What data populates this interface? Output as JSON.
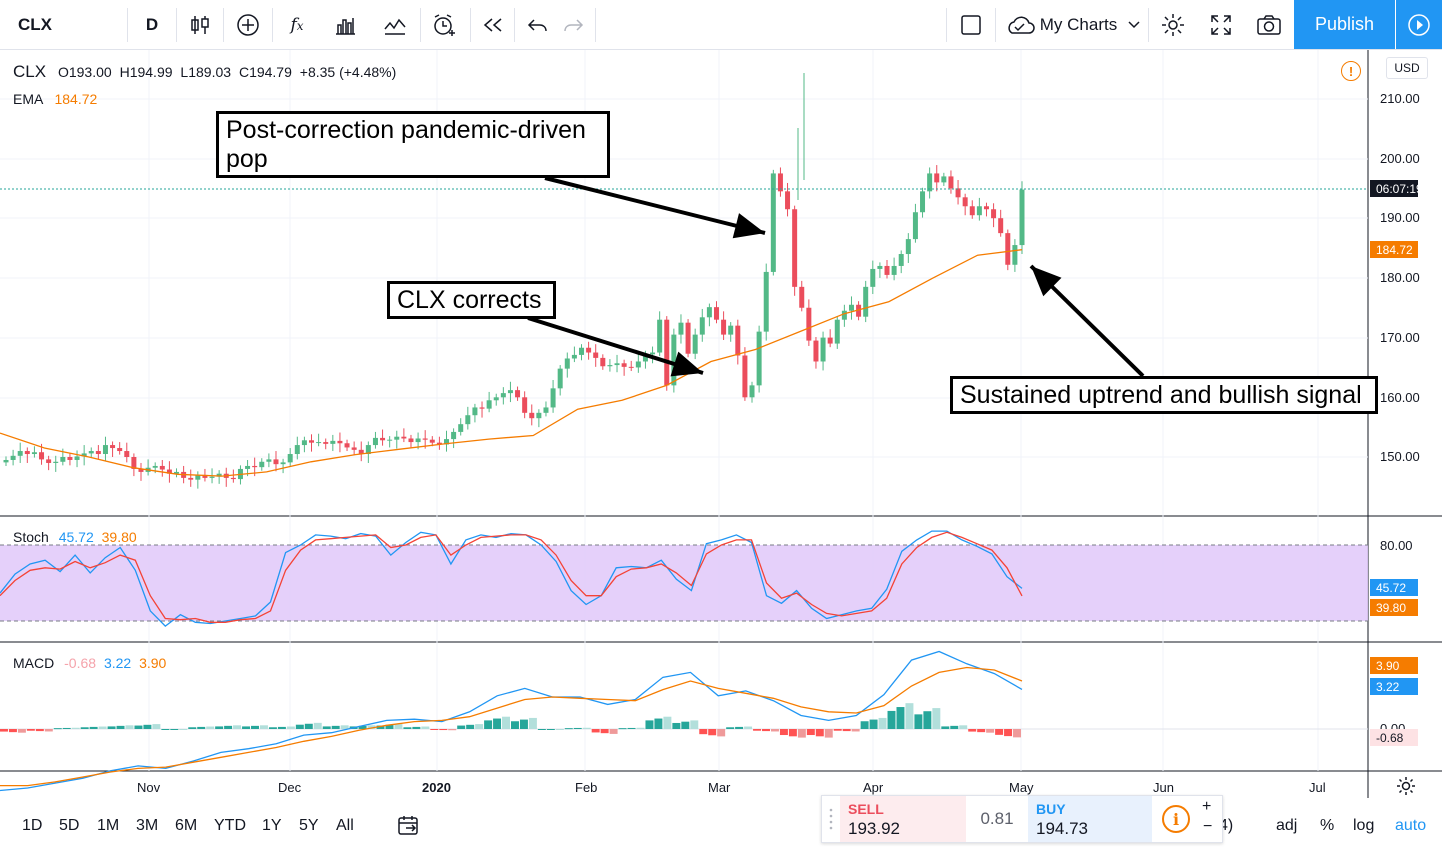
{
  "toolbar": {
    "symbol": "CLX",
    "interval": "D",
    "my_charts": "My Charts",
    "publish": "Publish"
  },
  "legend": {
    "symbol": "CLX",
    "open_label": "O",
    "open": "193.00",
    "high_label": "H",
    "high": "194.99",
    "low_label": "L",
    "low": "189.03",
    "close_label": "C",
    "close": "194.79",
    "change": "+8.35 (+4.48%)",
    "ema_label": "EMA",
    "ema_value": "184.72",
    "currency": "USD"
  },
  "annotations": {
    "pop": "Post-correction pandemic-driven pop",
    "corrects": "CLX corrects",
    "uptrend": "Sustained uptrend and bullish signal"
  },
  "price_axis": {
    "ticks": [
      "210.00",
      "200.00",
      "190.00",
      "180.00",
      "170.00",
      "160.00",
      "150.00"
    ],
    "countdown": "06:07:19",
    "ema_tag": "184.72"
  },
  "stoch": {
    "label": "Stoch",
    "k": "45.72",
    "d": "39.80",
    "upper": "80.00",
    "k_tag": "45.72",
    "d_tag": "39.80"
  },
  "macd": {
    "label": "MACD",
    "hist": "-0.68",
    "macd": "3.22",
    "signal": "3.90",
    "tick_zero": "0.00",
    "signal_tag": "3.90",
    "macd_tag": "3.22",
    "hist_tag": "-0.68"
  },
  "time_axis": [
    "Nov",
    "Dec",
    "2020",
    "Feb",
    "Mar",
    "Apr",
    "May",
    "Jun",
    "Jul"
  ],
  "ranges": [
    "1D",
    "5D",
    "1M",
    "3M",
    "6M",
    "YTD",
    "1Y",
    "5Y",
    "All"
  ],
  "bottom_right": {
    "adj": "adj",
    "pct": "%",
    "log": "log",
    "auto": "auto",
    "partial": "4)"
  },
  "trade": {
    "sell_label": "SELL",
    "sell_price": "193.92",
    "spread": "0.81",
    "buy_label": "BUY",
    "buy_price": "194.73"
  },
  "colors": {
    "up": "#53b987",
    "down": "#eb4d5c",
    "ema": "#f57c00",
    "stoch_k": "#2196f3",
    "stoch_d": "#f44336",
    "band": "#e1c8f9",
    "accent": "#2196f3"
  },
  "chart_data": [
    {
      "type": "candlestick",
      "title": "CLX",
      "series": [
        {
          "name": "CLX",
          "values_close": [
            149.5,
            150.2,
            151,
            150.5,
            150.8,
            149.6,
            149,
            149.2,
            150,
            149.5,
            150.1,
            150.6,
            151,
            150.5,
            152,
            151.5,
            151,
            150,
            148,
            147.5,
            148.2,
            148.5,
            147.9,
            147.2,
            147.5,
            146.5,
            146.2,
            147,
            146.5,
            146.7,
            147.2,
            146.5,
            146.3,
            148,
            148.5,
            148.3,
            149.2,
            149.6,
            148.8,
            149.1,
            150.5,
            152,
            152.8,
            152.4,
            152.5,
            152.2,
            152.7,
            152.3,
            151.6,
            151.2,
            150.5,
            152,
            153.2,
            152.8,
            152.9,
            153.4,
            153.1,
            152.5,
            153.1,
            152.9,
            152.4,
            152.1,
            153,
            154.2,
            155.5,
            157,
            158.3,
            158.1,
            159.5,
            160,
            160.7,
            161.2,
            160,
            157.4,
            156.5,
            157.4,
            158.3,
            161.5,
            164.8,
            166.5,
            167.1,
            168.3,
            167.5,
            166.6,
            165.2,
            165.4,
            165.7,
            165.1,
            165,
            166,
            167.2,
            167.5,
            173,
            162,
            170.5,
            172.5,
            167.3,
            170.5,
            173.4,
            175.1,
            173,
            170.5,
            172,
            167,
            160,
            162,
            171,
            181,
            197.5,
            194.5,
            191.5,
            178.5,
            175,
            169.5,
            166,
            170,
            169,
            173,
            174.5,
            175.5,
            173.5,
            178.5,
            181.5,
            182,
            180.5,
            182,
            184,
            186.5,
            191,
            194.5,
            197.5,
            196,
            197,
            195,
            193.5,
            192,
            190.5,
            192,
            191.5,
            190,
            187.5,
            182.2,
            185.5,
            194.79
          ]
        }
      ],
      "ylim": [
        140,
        215
      ],
      "yticks": [
        150,
        160,
        170,
        180,
        190,
        200,
        210
      ],
      "xticks": [
        "Nov",
        "Dec",
        "2020",
        "Feb",
        "Mar",
        "Apr",
        "May",
        "Jun",
        "Jul"
      ],
      "grid": true
    },
    {
      "type": "line",
      "title": "EMA",
      "series": [
        {
          "name": "EMA",
          "values": [
            154,
            151.5,
            150,
            148.2,
            147.1,
            146.8,
            147.5,
            149.2,
            150.4,
            151.3,
            152.2,
            153,
            153.6,
            158,
            159.5,
            162,
            166,
            168,
            171,
            174,
            176,
            180,
            183.8,
            184.72
          ]
        }
      ]
    },
    {
      "type": "line",
      "title": "Stoch",
      "series": [
        {
          "name": "%K",
          "values": [
            42,
            57,
            65,
            68,
            59,
            72,
            58,
            70,
            78,
            60,
            28,
            16,
            25,
            19,
            18,
            20,
            22,
            24,
            35,
            74,
            80,
            88,
            87,
            85,
            89,
            87,
            72,
            82,
            90,
            88,
            65,
            84,
            88,
            86,
            89,
            88,
            80,
            67,
            44,
            33,
            40,
            62,
            63,
            62,
            68,
            53,
            44,
            81,
            84,
            88,
            82,
            40,
            34,
            44,
            30,
            22,
            25,
            28,
            30,
            45,
            75,
            84,
            91,
            91,
            84,
            79,
            73,
            55,
            45.72
          ]
        },
        {
          "name": "%D",
          "values": [
            40,
            52,
            60,
            62,
            61,
            67,
            62,
            66,
            72,
            68,
            40,
            22,
            21,
            22,
            19,
            19,
            21,
            22,
            28,
            60,
            76,
            84,
            85,
            86,
            87,
            88,
            78,
            80,
            86,
            88,
            72,
            80,
            86,
            87,
            88,
            88,
            84,
            72,
            52,
            40,
            40,
            55,
            61,
            62,
            65,
            58,
            48,
            73,
            80,
            84,
            84,
            50,
            38,
            42,
            33,
            26,
            24,
            26,
            28,
            38,
            65,
            78,
            86,
            90,
            86,
            81,
            76,
            62,
            39.8
          ]
        }
      ],
      "ylim": [
        0,
        100
      ],
      "bands": [
        20,
        80
      ]
    },
    {
      "type": "line",
      "title": "MACD",
      "series": [
        {
          "name": "MACD",
          "values": [
            -5,
            -4.8,
            -4.4,
            -4,
            -3.4,
            -3,
            -3.2,
            -2.6,
            -1.9,
            -1.6,
            -1.2,
            -0.5,
            -0.3,
            0.2,
            0.7,
            0.8,
            0.6,
            1.4,
            2.7,
            3.3,
            2.6,
            2.6,
            2,
            2.4,
            4.2,
            4.6,
            2.7,
            3.1,
            2.3,
            1.1,
            0.7,
            1.1,
            2.8,
            5.6,
            6.3,
            5.3,
            4.5,
            3.22
          ]
        },
        {
          "name": "Signal",
          "values": [
            -4.6,
            -4.6,
            -4.3,
            -3.9,
            -3.5,
            -3.2,
            -3.1,
            -2.7,
            -2.3,
            -1.9,
            -1.5,
            -1,
            -0.6,
            -0.1,
            0.3,
            0.6,
            0.7,
            1,
            1.7,
            2.4,
            2.6,
            2.5,
            2.4,
            2.3,
            3.2,
            3.9,
            3.3,
            2.9,
            2.5,
            1.8,
            1.4,
            1.3,
            1.9,
            3.5,
            4.6,
            5,
            4.8,
            3.9
          ]
        },
        {
          "name": "Histogram",
          "values": [
            -0.3,
            -0.2,
            0.1,
            0.2,
            0.3,
            0.4,
            0,
            0.2,
            0.3,
            0.3,
            0.2,
            0.5,
            0.3,
            0.3,
            0.4,
            0.2,
            -0.1,
            0.4,
            1,
            0.9,
            0,
            0.1,
            -0.4,
            0.1,
            1,
            0.7,
            -0.6,
            0.2,
            -0.2,
            -0.7,
            -0.7,
            -0.2,
            0.9,
            2.1,
            1.7,
            0.3,
            -0.3,
            -0.68
          ]
        }
      ],
      "ylim": [
        -5.5,
        7
      ]
    }
  ]
}
